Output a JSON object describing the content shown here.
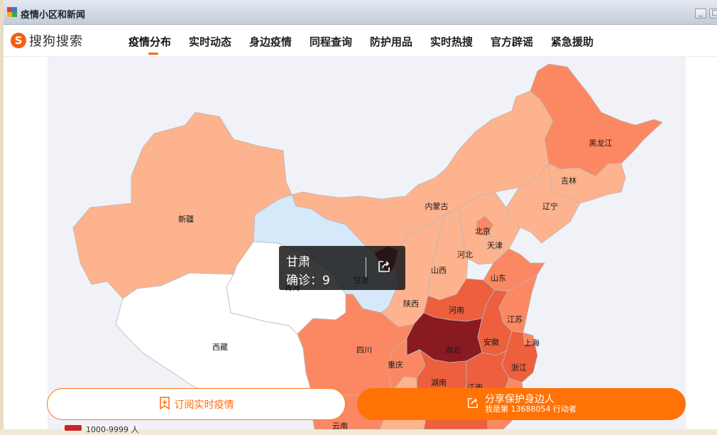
{
  "window": {
    "title": "疫情小区和新闻",
    "minimize_glyph": "_",
    "maximize_glyph": "□"
  },
  "nav": {
    "logo_text": "搜狗搜索",
    "logo_mark": "S",
    "items": [
      "疫情分布",
      "实时动态",
      "身边疫情",
      "同程查询",
      "防护用品",
      "实时热搜",
      "官方辟谣",
      "紧急援助"
    ],
    "active_index": 0
  },
  "map": {
    "labels": {
      "xinjiang": "新疆",
      "xizang": "西藏",
      "qinghai": "青海",
      "gansu": "甘肃",
      "neimenggu": "内蒙古",
      "heilongjiang": "黑龙江",
      "jilin": "吉林",
      "liaoning": "辽宁",
      "beijing": "北京",
      "tianjin": "天津",
      "hebei": "河北",
      "shanxi": "山西",
      "shandong": "山东",
      "shaanxi": "陕西",
      "henan": "河南",
      "jiangsu": "江苏",
      "shanghai": "上海",
      "anhui": "安徽",
      "hubei": "湖北",
      "zhejiang": "浙江",
      "sichuan": "四川",
      "chongqing": "重庆",
      "hunan": "湖南",
      "jiangxi": "江西",
      "yunnan": "云南"
    },
    "colors": {
      "none": "#ffffff",
      "level1": "#d6e9fb",
      "level2": "#fdb38d",
      "level3": "#fb8862",
      "level4": "#ed5f3d",
      "level5": "#8a1a22"
    }
  },
  "tooltip": {
    "province": "甘肃",
    "count_text": "确诊：9",
    "share_icon": "share-icon"
  },
  "actions": {
    "subscribe_label": "订阅实时疫情",
    "share_main": "分享保护身边人",
    "share_sub": "我是第 13688054 行动者"
  },
  "legend": {
    "label": "1000-9999 人",
    "color": "#c8242a"
  }
}
